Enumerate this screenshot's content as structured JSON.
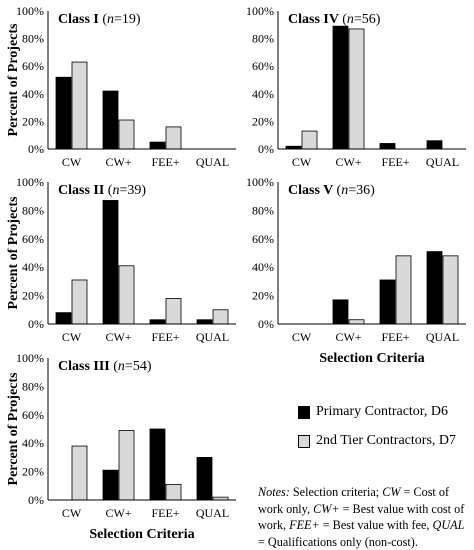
{
  "chart_data": {
    "type": "bar",
    "ylabel": "Percent of Projects",
    "xlabel": "Selection Criteria",
    "categories": [
      "CW",
      "CW+",
      "FEE+",
      "QUAL"
    ],
    "yticks": [
      "0%",
      "20%",
      "40%",
      "60%",
      "80%",
      "100%"
    ],
    "ylim": [
      0,
      100
    ],
    "grid": false,
    "colors": {
      "primary": "#000000",
      "second_tier": "#d9d9d9"
    },
    "series_names": [
      "Primary Contractor, D6",
      "2nd Tier Contractors, D7"
    ],
    "panels": [
      {
        "key": "I",
        "class_label": "Class I",
        "n_text": "n",
        "n_value": "=19",
        "primary": [
          52,
          42,
          5,
          0
        ],
        "second_tier": [
          63,
          21,
          16,
          0
        ]
      },
      {
        "key": "IV",
        "class_label": "Class IV",
        "n_text": "n",
        "n_value": "=56",
        "primary": [
          2,
          89,
          4,
          6
        ],
        "second_tier": [
          13,
          87,
          0,
          0
        ]
      },
      {
        "key": "II",
        "class_label": "Class II",
        "n_text": "n",
        "n_value": "=39",
        "primary": [
          8,
          87,
          3,
          3
        ],
        "second_tier": [
          31,
          41,
          18,
          10
        ]
      },
      {
        "key": "V",
        "class_label": "Class V",
        "n_text": "n",
        "n_value": "=36",
        "primary": [
          0,
          17,
          31,
          51
        ],
        "second_tier": [
          0,
          3,
          48,
          48
        ]
      },
      {
        "key": "III",
        "class_label": "Class III",
        "n_text": "n",
        "n_value": "=54",
        "primary": [
          0,
          21,
          50,
          30
        ],
        "second_tier": [
          38,
          49,
          11,
          2
        ]
      }
    ]
  },
  "legend": {
    "primary_label": "Primary Contractor, D6",
    "second_label": "2nd Tier Contractors, D7"
  },
  "notes": {
    "label": "Notes:",
    "t1": " Selection criteria; ",
    "cw": "CW",
    "t2": " = Cost of work only, ",
    "cwplus": "CW+",
    "t3": " = Best value with cost of work, ",
    "fee": "FEE+",
    "t4": " = Best value with fee, ",
    "qual": "QUAL",
    "t5": " = Qualifications only (non-cost)."
  }
}
